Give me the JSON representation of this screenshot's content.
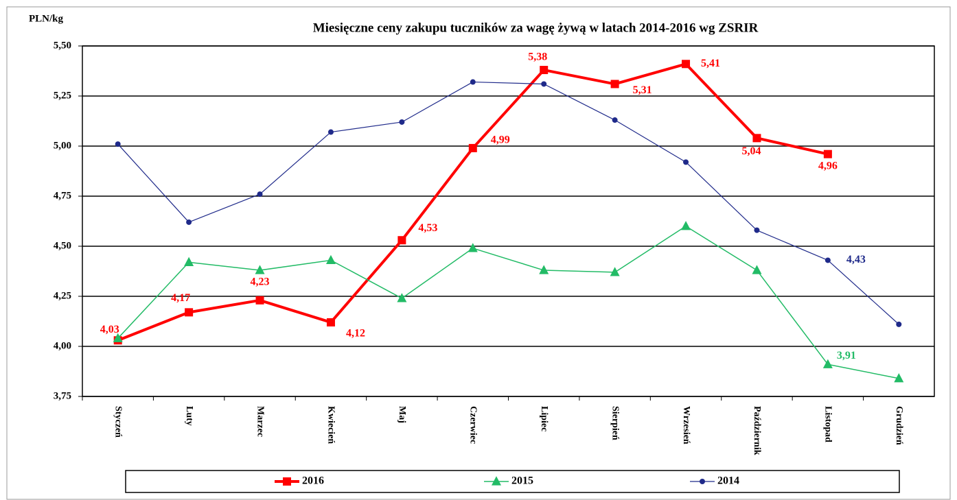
{
  "chart_data": {
    "type": "line",
    "title": "Miesięczne ceny zakupu tuczników za wagę żywą w latach 2014-2016  wg ZSRIR",
    "y_label": "PLN/kg",
    "categories": [
      "Styczeń",
      "Luty",
      "Marzec",
      "Kwiecień",
      "Maj",
      "Czerwiec",
      "Lipiec",
      "Sierpień",
      "Wrzesień",
      "Październik",
      "Listopad",
      "Grudzień"
    ],
    "series": [
      {
        "name": "2016",
        "color": "#ff0000",
        "marker": "square",
        "values": [
          4.03,
          4.17,
          4.23,
          4.12,
          4.53,
          4.99,
          5.38,
          5.31,
          5.41,
          5.04,
          4.96,
          null
        ],
        "value_labels": [
          "4,03",
          "4,17",
          "4,23",
          "4,12",
          "4,53",
          "4,99",
          "5,38",
          "5,31",
          "5,41",
          "5,04",
          "4,96",
          null
        ]
      },
      {
        "name": "2015",
        "color": "#22bb66",
        "marker": "triangle",
        "values": [
          4.04,
          4.42,
          4.38,
          4.43,
          4.24,
          4.49,
          4.38,
          4.37,
          4.6,
          4.38,
          3.91,
          3.84
        ],
        "value_labels": [
          null,
          null,
          null,
          null,
          null,
          null,
          null,
          null,
          null,
          null,
          "3,91",
          null
        ]
      },
      {
        "name": "2014",
        "color": "#1f2a8a",
        "marker": "circle",
        "values": [
          5.01,
          4.62,
          4.76,
          5.07,
          5.12,
          5.32,
          5.31,
          5.13,
          4.92,
          4.58,
          4.43,
          4.11
        ],
        "value_labels": [
          null,
          null,
          null,
          null,
          null,
          null,
          null,
          null,
          null,
          null,
          "4,43",
          null
        ]
      }
    ],
    "ylim": [
      3.75,
      5.5
    ],
    "yticks": [
      {
        "value": 3.75,
        "label": "3,75"
      },
      {
        "value": 4,
        "label": "4,00"
      },
      {
        "value": 4.25,
        "label": "4,25"
      },
      {
        "value": 4.5,
        "label": "4,50"
      },
      {
        "value": 4.75,
        "label": "4,75"
      },
      {
        "value": 5,
        "label": "5,00"
      },
      {
        "value": 5.25,
        "label": "5,25"
      },
      {
        "value": 5.5,
        "label": "5,50"
      }
    ],
    "grid": true,
    "legend": "bottom"
  }
}
